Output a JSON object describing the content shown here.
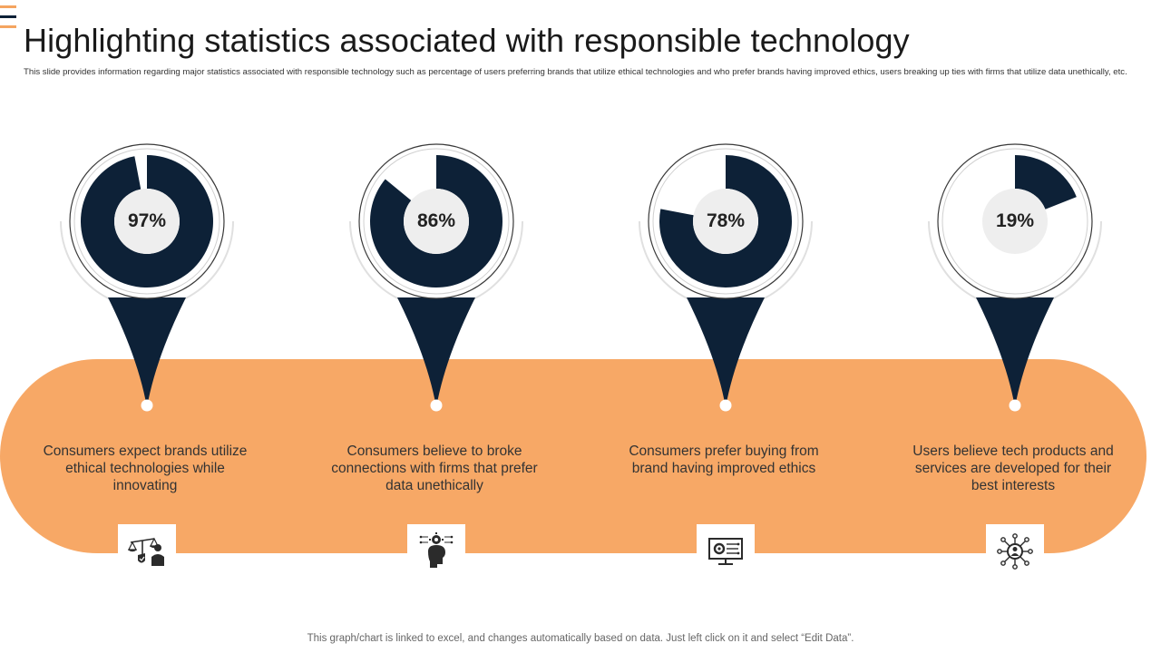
{
  "colors": {
    "navy": "#0d2137",
    "orange": "#f7a866",
    "accent_bar_1": "#f4a460",
    "accent_bar_2": "#0d2137",
    "accent_bar_3": "#f4a460"
  },
  "header": {
    "title": "Highlighting statistics associated with responsible technology",
    "subtitle": "This slide provides information regarding major statistics associated with responsible technology such as percentage of users preferring brands that utilize ethical technologies and who prefer brands having improved ethics, users breaking up ties with firms that utilize data unethically, etc."
  },
  "stats": [
    {
      "percent_label": "97%",
      "value": 97,
      "description": "Consumers expect brands utilize ethical technologies while innovating",
      "icon": "ethics-scale-icon"
    },
    {
      "percent_label": "86%",
      "value": 86,
      "description": "Consumers believe to broke connections with firms that prefer data unethically",
      "icon": "mind-gear-icon"
    },
    {
      "percent_label": "78%",
      "value": 78,
      "description": "Consumers prefer buying from brand having improved ethics",
      "icon": "monitor-gear-icon"
    },
    {
      "percent_label": "19%",
      "value": 19,
      "description": "Users believe tech products and services are developed for their best interests",
      "icon": "user-network-icon"
    }
  ],
  "footer": {
    "note": "This graph/chart is linked to excel, and changes automatically based on data. Just left click on it and select “Edit Data”."
  }
}
